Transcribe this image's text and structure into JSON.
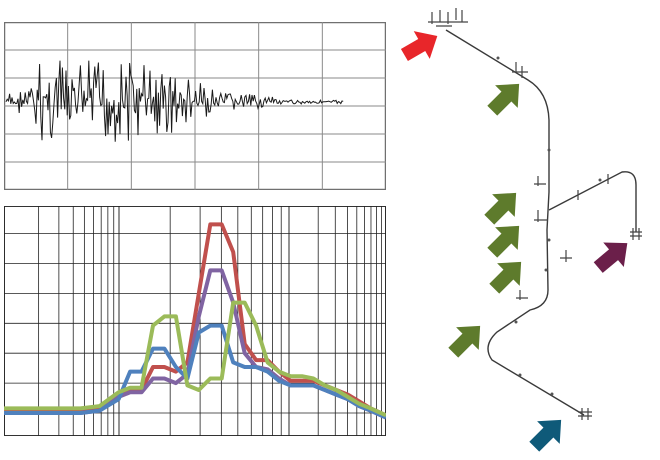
{
  "seismogram": {
    "grid": {
      "columns": 6,
      "rows": 6
    },
    "colors": {
      "frame": "#707070",
      "grid": "#8a8a8a",
      "trace": "#1a1a1a",
      "background": "#ffffff"
    }
  },
  "chart_data": {
    "type": "line",
    "title": "",
    "xlabel": "",
    "ylabel": "",
    "x_scale": "log",
    "grid": true,
    "x": [
      0.0,
      0.05,
      0.1,
      0.15,
      0.2,
      0.25,
      0.3,
      0.33,
      0.36,
      0.39,
      0.42,
      0.45,
      0.48,
      0.51,
      0.54,
      0.57,
      0.6,
      0.63,
      0.66,
      0.69,
      0.72,
      0.75,
      0.78,
      0.81,
      0.84,
      0.87,
      0.9,
      0.93,
      0.96,
      1.0
    ],
    "ylim": [
      0,
      1
    ],
    "series": [
      {
        "color": "#c0504d",
        "values": [
          0.11,
          0.11,
          0.11,
          0.11,
          0.11,
          0.12,
          0.18,
          0.2,
          0.2,
          0.3,
          0.3,
          0.28,
          0.32,
          0.62,
          0.92,
          0.92,
          0.8,
          0.4,
          0.33,
          0.33,
          0.28,
          0.24,
          0.24,
          0.24,
          0.22,
          0.2,
          0.18,
          0.15,
          0.12,
          0.09
        ]
      },
      {
        "color": "#8064a2",
        "values": [
          0.1,
          0.1,
          0.1,
          0.1,
          0.1,
          0.11,
          0.17,
          0.19,
          0.19,
          0.25,
          0.25,
          0.23,
          0.27,
          0.52,
          0.72,
          0.72,
          0.58,
          0.36,
          0.3,
          0.29,
          0.25,
          0.22,
          0.22,
          0.22,
          0.2,
          0.18,
          0.16,
          0.13,
          0.11,
          0.08
        ]
      },
      {
        "color": "#4f81bd",
        "values": [
          0.1,
          0.1,
          0.1,
          0.1,
          0.1,
          0.11,
          0.16,
          0.28,
          0.28,
          0.38,
          0.38,
          0.3,
          0.25,
          0.45,
          0.48,
          0.48,
          0.32,
          0.3,
          0.3,
          0.28,
          0.24,
          0.22,
          0.22,
          0.22,
          0.2,
          0.18,
          0.16,
          0.13,
          0.11,
          0.08
        ]
      },
      {
        "color": "#9bbb59",
        "values": [
          0.12,
          0.12,
          0.12,
          0.12,
          0.12,
          0.13,
          0.19,
          0.21,
          0.21,
          0.48,
          0.52,
          0.52,
          0.22,
          0.2,
          0.25,
          0.25,
          0.58,
          0.58,
          0.48,
          0.32,
          0.28,
          0.26,
          0.26,
          0.25,
          0.22,
          0.2,
          0.17,
          0.14,
          0.12,
          0.09
        ]
      }
    ]
  },
  "piping": {
    "colors": {
      "pipe": "#3a3a3a",
      "support": "#444444"
    },
    "arrows": [
      {
        "name": "red",
        "color": "#e8262a"
      },
      {
        "name": "green-1",
        "color": "#5e7b2c"
      },
      {
        "name": "green-2",
        "color": "#5e7b2c"
      },
      {
        "name": "green-3",
        "color": "#5e7b2c"
      },
      {
        "name": "green-4",
        "color": "#5e7b2c"
      },
      {
        "name": "green-5",
        "color": "#5e7b2c"
      },
      {
        "name": "purple",
        "color": "#6b1f4a"
      },
      {
        "name": "teal",
        "color": "#0f5a79"
      }
    ]
  }
}
